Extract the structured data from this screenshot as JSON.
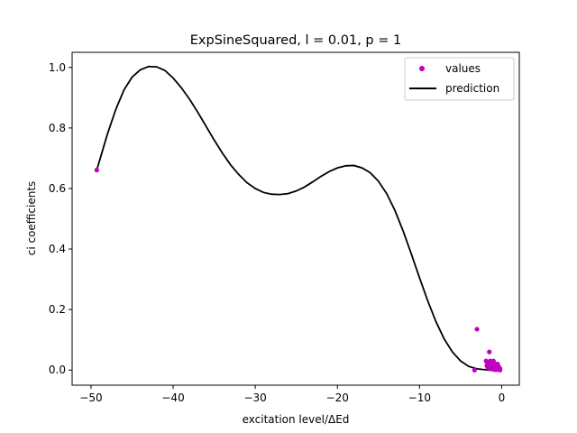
{
  "chart_data": {
    "type": "scatter",
    "title": "ExpSineSquared, l = 0.01, p = 1",
    "xlabel": "excitation level/ΔEd",
    "ylabel": "ci coefficients",
    "xlim": [
      -52.3,
      2.15
    ],
    "ylim": [
      -0.05,
      1.05
    ],
    "xticks": [
      -50,
      -40,
      -30,
      -20,
      -10,
      0
    ],
    "xtick_labels": [
      "−50",
      "−40",
      "−30",
      "−20",
      "−10",
      "0"
    ],
    "yticks": [
      0.0,
      0.2,
      0.4,
      0.6,
      0.8,
      1.0
    ],
    "ytick_labels": [
      "0.0",
      "0.2",
      "0.4",
      "0.6",
      "0.8",
      "1.0"
    ],
    "grid": false,
    "legend_position": "top-right",
    "series": [
      {
        "name": "values",
        "kind": "scatter",
        "color": "#bf00bf",
        "x": [
          -49.3,
          -3.0,
          -3.3,
          -1.5,
          -1.9,
          -1.7,
          -1.4,
          -1.2,
          -1.0,
          -0.8,
          -0.6,
          -0.4,
          -0.2,
          -1.6,
          -1.3,
          -1.1,
          -0.9,
          -0.7,
          -0.5,
          -0.3,
          -1.8,
          -1.5,
          -1.2,
          -0.9,
          -0.6,
          -0.4,
          -1.4,
          -1.0,
          -0.8,
          -0.5,
          -0.3,
          -1.7,
          -1.1,
          -0.7,
          -0.2
        ],
        "y": [
          0.661,
          0.135,
          0.0,
          0.06,
          0.03,
          0.02,
          0.03,
          0.02,
          0.03,
          0.02,
          0.015,
          0.01,
          0.005,
          0.01,
          0.005,
          0.015,
          0.01,
          0.005,
          0.02,
          0.008,
          0.015,
          0.025,
          0.008,
          0.018,
          0.006,
          0.012,
          0.004,
          0.002,
          0.01,
          0.003,
          0.002,
          0.008,
          0.012,
          0.001,
          0.0
        ]
      },
      {
        "name": "prediction",
        "kind": "line",
        "color": "#000000",
        "x": [
          -49.3,
          -48.0,
          -47.0,
          -46.0,
          -45.0,
          -44.0,
          -43.0,
          -42.0,
          -41.0,
          -40.0,
          -39.0,
          -38.0,
          -37.0,
          -36.0,
          -35.0,
          -34.0,
          -33.0,
          -32.0,
          -31.0,
          -30.0,
          -29.0,
          -28.0,
          -27.0,
          -26.0,
          -25.0,
          -24.0,
          -23.0,
          -22.0,
          -21.0,
          -20.0,
          -19.0,
          -18.0,
          -17.0,
          -16.0,
          -15.0,
          -14.0,
          -13.0,
          -12.0,
          -11.0,
          -10.0,
          -9.0,
          -8.0,
          -7.0,
          -6.0,
          -5.0,
          -4.0,
          -3.0,
          -2.0,
          -1.5,
          -1.0,
          -0.5,
          -0.1
        ],
        "y": [
          0.661,
          0.78,
          0.86,
          0.925,
          0.968,
          0.992,
          1.003,
          1.002,
          0.99,
          0.965,
          0.933,
          0.895,
          0.852,
          0.806,
          0.76,
          0.717,
          0.678,
          0.646,
          0.619,
          0.6,
          0.587,
          0.581,
          0.58,
          0.583,
          0.592,
          0.605,
          0.622,
          0.64,
          0.656,
          0.668,
          0.675,
          0.676,
          0.668,
          0.652,
          0.624,
          0.583,
          0.528,
          0.46,
          0.384,
          0.305,
          0.229,
          0.16,
          0.103,
          0.06,
          0.03,
          0.012,
          0.004,
          0.001,
          0.0,
          0.0,
          0.0,
          0.0
        ]
      }
    ]
  }
}
